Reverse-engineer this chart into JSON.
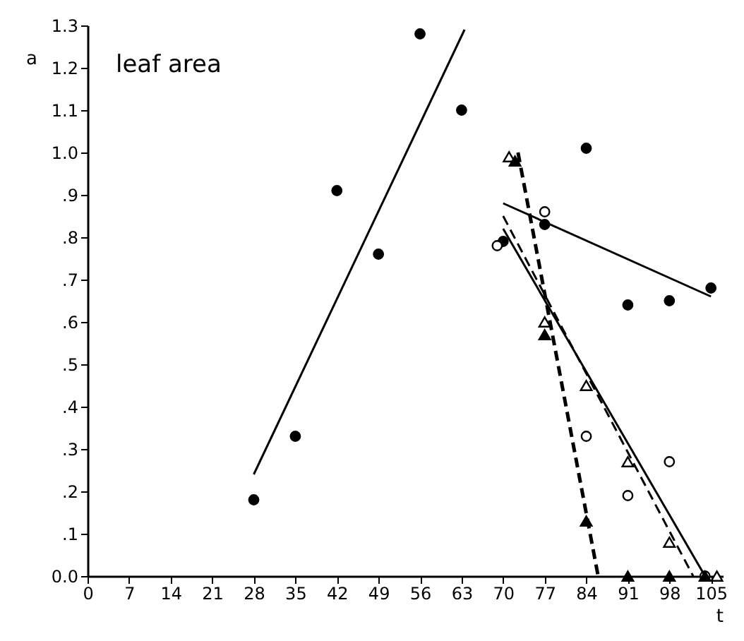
{
  "chart_data": {
    "type": "scatter",
    "annotations": [
      "leaf area"
    ],
    "xlabel": "t",
    "ylabel": "a",
    "xlim": [
      0,
      107
    ],
    "ylim": [
      0,
      1.3
    ],
    "xticks": [
      0,
      7,
      14,
      21,
      28,
      35,
      42,
      49,
      56,
      63,
      70,
      77,
      84,
      91,
      98,
      105
    ],
    "yticks": [
      {
        "value": 0,
        "label": "0.0"
      },
      {
        "value": 0.1,
        "label": ".1"
      },
      {
        "value": 0.2,
        "label": ".2"
      },
      {
        "value": 0.3,
        "label": ".3"
      },
      {
        "value": 0.4,
        "label": ".4"
      },
      {
        "value": 0.5,
        "label": ".5"
      },
      {
        "value": 0.6,
        "label": ".6"
      },
      {
        "value": 0.7,
        "label": ".7"
      },
      {
        "value": 0.8,
        "label": ".8"
      },
      {
        "value": 0.9,
        "label": ".9"
      },
      {
        "value": 1,
        "label": "1.0"
      },
      {
        "value": 1.1,
        "label": "1.1"
      },
      {
        "value": 1.2,
        "label": "1.2"
      },
      {
        "value": 1.3,
        "label": "1.3"
      }
    ],
    "grid": false,
    "series": [
      {
        "marker": "circle",
        "color": "#000000",
        "x": [
          28,
          35,
          42,
          49,
          56,
          63,
          70,
          77,
          84,
          91,
          98,
          105
        ],
        "values": [
          0.18,
          0.33,
          0.91,
          0.76,
          1.28,
          1.1,
          0.79,
          0.83,
          1.01,
          0.64,
          0.65,
          0.68
        ]
      },
      {
        "marker": "circle",
        "color": "#ffffff",
        "x": [
          69,
          77,
          84,
          91,
          98,
          104
        ],
        "values": [
          0.78,
          0.86,
          0.33,
          0.19,
          0.27,
          0
        ]
      },
      {
        "marker": "triangle",
        "color": "#ffffff",
        "x": [
          71,
          77,
          84,
          91,
          98,
          106
        ],
        "values": [
          0.99,
          0.6,
          0.45,
          0.27,
          0.08,
          0
        ]
      },
      {
        "marker": "triangle",
        "color": "#000000",
        "x": [
          72,
          77,
          84,
          91,
          98,
          104
        ],
        "values": [
          0.98,
          0.57,
          0.13,
          0,
          0,
          0
        ]
      },
      {
        "type": "line",
        "line_style": "solid",
        "color": "#000000",
        "x": [
          28,
          63.5
        ],
        "values": [
          0.24,
          1.29
        ]
      },
      {
        "type": "line",
        "line_style": "solid",
        "color": "#000000",
        "x": [
          70,
          105
        ],
        "values": [
          0.88,
          0.66
        ]
      },
      {
        "type": "line",
        "line_style": "dashed",
        "color": "#000000",
        "x": [
          72.5,
          86
        ],
        "values": [
          1.0,
          0
        ]
      },
      {
        "type": "line",
        "line_style": "dashed",
        "color": "#000000",
        "x": [
          70,
          102
        ],
        "values": [
          0.85,
          0
        ]
      },
      {
        "type": "line",
        "line_style": "solid",
        "color": "#000000",
        "x": [
          70,
          104
        ],
        "values": [
          0.82,
          0
        ]
      }
    ]
  }
}
